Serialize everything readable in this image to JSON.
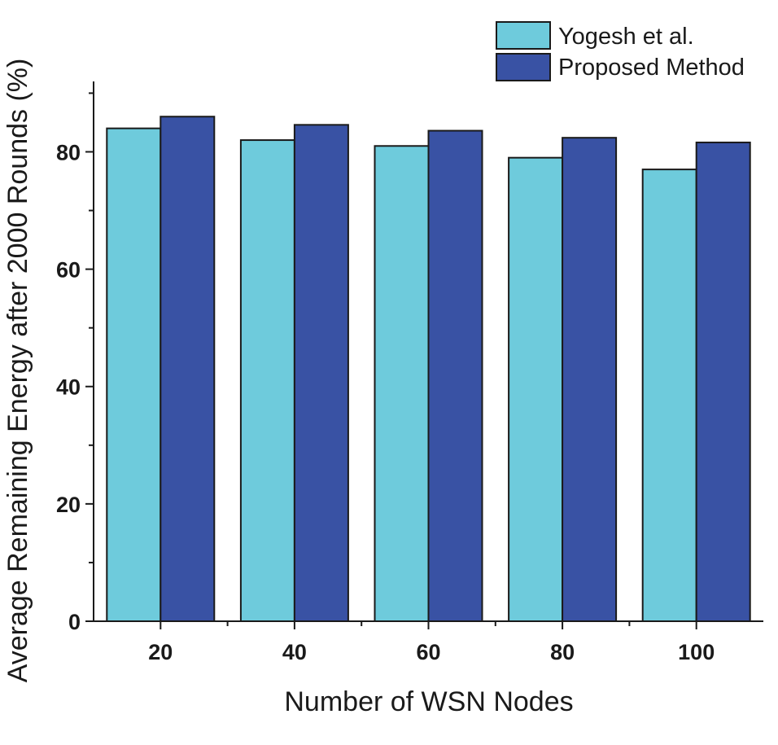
{
  "chart_data": {
    "type": "bar",
    "title": "",
    "xlabel": "Number of WSN Nodes",
    "ylabel": "Average Remaining Energy after 2000 Rounds (%)",
    "categories": [
      "20",
      "40",
      "60",
      "80",
      "100"
    ],
    "series": [
      {
        "name": "Yogesh et al.",
        "color": "#6ecbdc",
        "values": [
          84,
          82,
          81,
          79,
          77
        ]
      },
      {
        "name": "Proposed Method",
        "color": "#3952a4",
        "values": [
          86,
          84.6,
          83.6,
          82.4,
          81.6
        ]
      }
    ],
    "ylim": [
      0,
      92
    ],
    "yticks": [
      0,
      20,
      40,
      60,
      80
    ],
    "grid": false,
    "legend_position": "top-right"
  }
}
